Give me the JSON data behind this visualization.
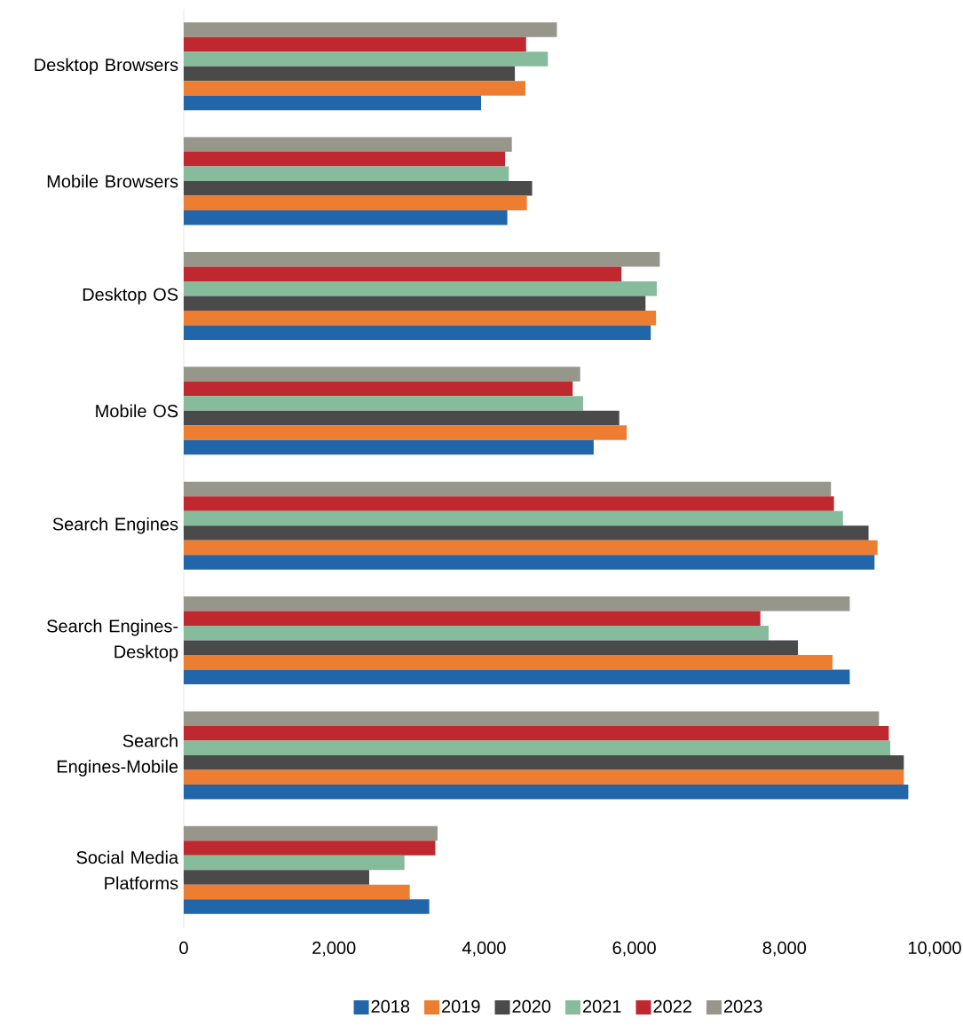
{
  "chart_data": {
    "type": "bar",
    "orientation": "horizontal",
    "categories": [
      "Desktop Browsers",
      "Mobile Browsers",
      "Desktop OS",
      "Mobile OS",
      "Search Engines",
      "Search Engines-Desktop",
      "Search Engines-Mobile",
      "Social Media Platforms"
    ],
    "series": [
      {
        "name": "2018",
        "color": "#2266aa",
        "values": [
          3960,
          4310,
          6220,
          5460,
          9200,
          8870,
          9650,
          3270
        ]
      },
      {
        "name": "2019",
        "color": "#ed7d31",
        "values": [
          4550,
          4570,
          6290,
          5900,
          9240,
          8640,
          9590,
          3010
        ]
      },
      {
        "name": "2020",
        "color": "#4a4a4a",
        "values": [
          4410,
          4640,
          6150,
          5800,
          9120,
          8180,
          9590,
          2470
        ]
      },
      {
        "name": "2021",
        "color": "#86bc9c",
        "values": [
          4850,
          4330,
          6300,
          5320,
          8780,
          7790,
          9410,
          2940
        ]
      },
      {
        "name": "2022",
        "color": "#c0282f",
        "values": [
          4560,
          4280,
          5830,
          5180,
          8660,
          7680,
          9390,
          3350
        ]
      },
      {
        "name": "2023",
        "color": "#97968a",
        "values": [
          4970,
          4370,
          6340,
          5280,
          8620,
          8870,
          9260,
          3380
        ]
      }
    ],
    "xlim": [
      0,
      10000
    ],
    "xticks": [
      0,
      {
        "value": 2000,
        "label": "2,000"
      },
      {
        "value": 4000,
        "label": "4,000"
      },
      {
        "value": 6000,
        "label": "6,000"
      },
      {
        "value": 8000,
        "label": "8,000"
      },
      {
        "value": 10000,
        "label": "10,000"
      }
    ],
    "grid": false,
    "legend": "bottom"
  }
}
